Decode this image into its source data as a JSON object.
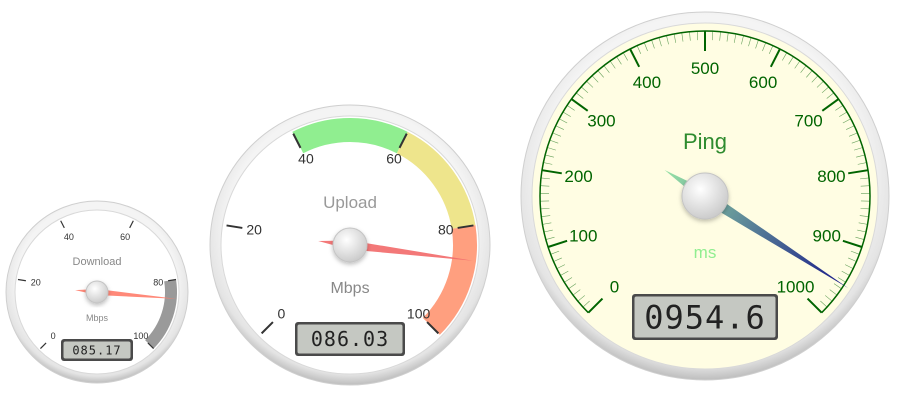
{
  "gauges": [
    {
      "id": "download",
      "title": "Download",
      "units": "Mbps",
      "value": 85.17,
      "readout": "085.17",
      "min": 0,
      "max": 100,
      "tick_labels": [
        "0",
        "20",
        "40",
        "60",
        "80",
        "100"
      ],
      "face_color": "#ffffff",
      "tick_color": "#333333",
      "label_color": "#333333",
      "title_color": "#888888",
      "units_color": "#888888",
      "needle_color": "#ff7f6e",
      "highlights": [
        {
          "from": 80,
          "to": 100,
          "color": "#9a9a9a"
        }
      ]
    },
    {
      "id": "upload",
      "title": "Upload",
      "units": "Mbps",
      "value": 86.03,
      "readout": "086.03",
      "min": 0,
      "max": 100,
      "tick_labels": [
        "0",
        "20",
        "40",
        "60",
        "80",
        "100"
      ],
      "face_color": "#ffffff",
      "tick_color": "#333333",
      "label_color": "#333333",
      "title_color": "#999999",
      "units_color": "#888888",
      "needle_color": "#f26d6d",
      "highlights": [
        {
          "from": 40,
          "to": 60,
          "color": "#90ee90"
        },
        {
          "from": 60,
          "to": 80,
          "color": "#eee58c"
        },
        {
          "from": 80,
          "to": 100,
          "color": "#ff9f7f"
        }
      ]
    },
    {
      "id": "ping",
      "title": "Ping",
      "units": "ms",
      "value": 954.6,
      "readout": "0954.6",
      "min": 0,
      "max": 1000,
      "tick_labels": [
        "0",
        "100",
        "200",
        "300",
        "400",
        "500",
        "600",
        "700",
        "800",
        "900",
        "1000"
      ],
      "face_color": "#fffde3",
      "tick_color": "#006400",
      "label_color": "#006400",
      "title_color": "#2e8b2e",
      "units_color": "#90ee90",
      "needle_color_start": "#8de0a0",
      "needle_color_end": "#000080",
      "highlights": []
    }
  ]
}
